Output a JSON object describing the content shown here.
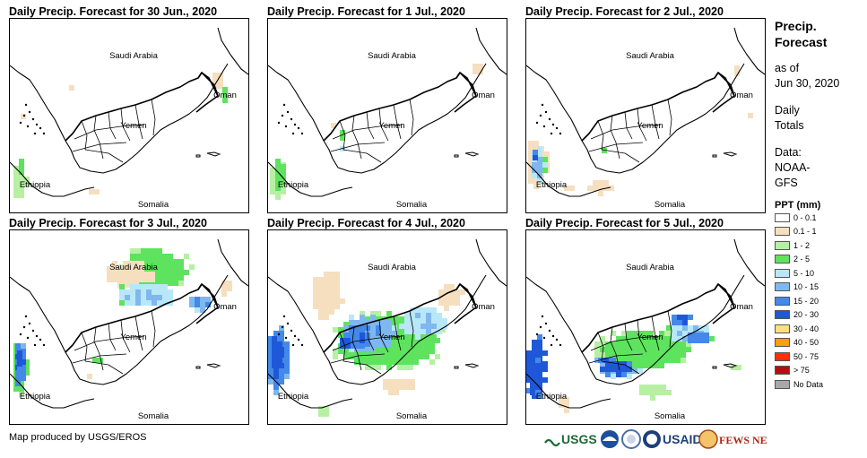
{
  "panels": [
    {
      "title": "Daily Precip. Forecast for 30 Jun., 2020",
      "day": 0
    },
    {
      "title": "Daily Precip. Forecast for 1 Jul., 2020",
      "day": 1
    },
    {
      "title": "Daily Precip. Forecast for 2 Jul., 2020",
      "day": 2
    },
    {
      "title": "Daily Precip. Forecast for 3 Jul., 2020",
      "day": 3
    },
    {
      "title": "Daily Precip. Forecast for 4 Jul., 2020",
      "day": 4
    },
    {
      "title": "Daily Precip. Forecast for 5 Jul., 2020",
      "day": 5
    }
  ],
  "map_labels": {
    "saudi": "Saudi Arabia",
    "oman": "Oman",
    "yemen": "Yemen",
    "ethiopia": "Ethiopia",
    "somalia": "Somalia"
  },
  "legend": {
    "title_line1": "Precip.",
    "title_line2": "Forecast",
    "asof_line1": "as of",
    "asof_line2": "Jun 30, 2020",
    "daily_line1": "Daily",
    "daily_line2": "Totals",
    "data_line1": "Data:",
    "data_line2": "NOAA-",
    "data_line3": "GFS",
    "ppt_title": "PPT (mm)",
    "classes": [
      {
        "label": "0 - 0.1",
        "color": "#ffffff"
      },
      {
        "label": "0.1 - 1",
        "color": "#f5dfbf"
      },
      {
        "label": "1 - 2",
        "color": "#b7f0a4"
      },
      {
        "label": "2 - 5",
        "color": "#5ee35e"
      },
      {
        "label": "5 - 10",
        "color": "#b8e8f8"
      },
      {
        "label": "10 - 15",
        "color": "#7fb8ee"
      },
      {
        "label": "15 - 20",
        "color": "#4488e8"
      },
      {
        "label": "20 - 30",
        "color": "#1e58d8"
      },
      {
        "label": "30 - 40",
        "color": "#ffe080"
      },
      {
        "label": "40 - 50",
        "color": "#ffa000"
      },
      {
        "label": "50 - 75",
        "color": "#ff3000"
      },
      {
        "label": "> 75",
        "color": "#b01010"
      },
      {
        "label": "No Data",
        "color": "#a8a8a8"
      }
    ]
  },
  "footer": "Map produced by USGS/EROS",
  "logos": {
    "usgs": "USGS",
    "usaid": "USAID",
    "fews": "FEWS NET"
  }
}
